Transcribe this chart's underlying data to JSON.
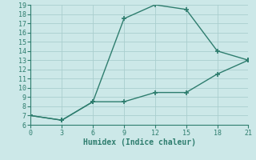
{
  "line1_x": [
    0,
    3,
    6,
    9,
    12,
    15,
    18,
    21
  ],
  "line1_y": [
    7,
    6.5,
    8.5,
    17.5,
    19,
    18.5,
    14,
    13
  ],
  "line2_x": [
    0,
    3,
    6,
    9,
    12,
    15,
    18,
    21
  ],
  "line2_y": [
    7,
    6.5,
    8.5,
    8.5,
    9.5,
    9.5,
    11.5,
    13
  ],
  "line_color": "#2e7d6e",
  "bg_color": "#cce8e8",
  "grid_color": "#aacece",
  "xlabel": "Humidex (Indice chaleur)",
  "xlim": [
    0,
    21
  ],
  "ylim": [
    6,
    19
  ],
  "xticks": [
    0,
    3,
    6,
    9,
    12,
    15,
    18,
    21
  ],
  "yticks": [
    6,
    7,
    8,
    9,
    10,
    11,
    12,
    13,
    14,
    15,
    16,
    17,
    18,
    19
  ],
  "marker": "+",
  "markersize": 5,
  "linewidth": 1.0,
  "linestyle": "-"
}
